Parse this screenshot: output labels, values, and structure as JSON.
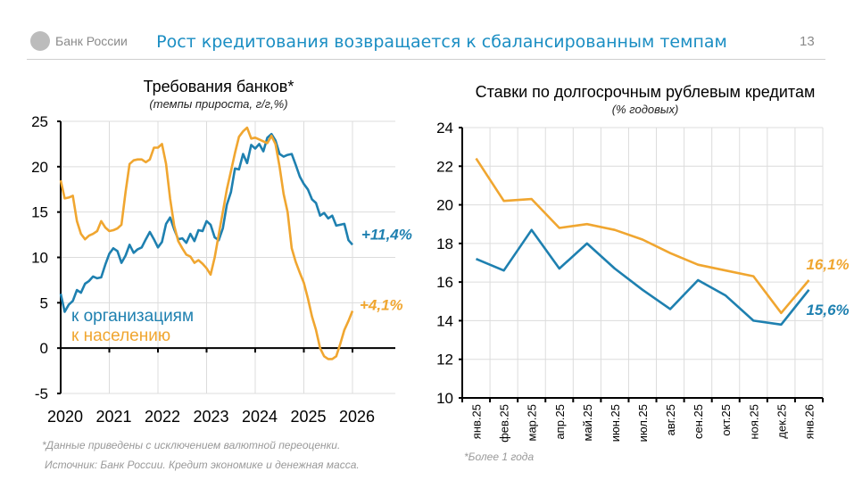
{
  "header": {
    "logo_text": "Банк России",
    "title": "Рост кредитования возвращается к сбалансированным темпам",
    "page_number": "13"
  },
  "colors": {
    "blue": "#1e80b0",
    "orange": "#f0a630",
    "title": "#1b8ec3"
  },
  "footnotes": {
    "left_1": "*Данные приведены с исключением валютной переоценки.",
    "left_2": "Источник: Банк России. Кредит экономике и денежная масса.",
    "right": "*Более 1 года"
  },
  "chart_data": [
    {
      "type": "line",
      "title": "Требования банков*",
      "subtitle": "(темпы прироста, г/г,%)",
      "ylim": [
        -5,
        25
      ],
      "yticks": [
        "-5",
        "0",
        "5",
        "10",
        "15",
        "20",
        "25"
      ],
      "xticks": [
        "2020",
        "2021",
        "2022",
        "2023",
        "2024",
        "2025",
        "2026"
      ],
      "grid": true,
      "legend_placement": "inside-bottom-left",
      "series": [
        {
          "name": "к организациям",
          "color": "#1e80b0",
          "end_label": "+11,4%",
          "points": [
            [
              "2020-01",
              6
            ],
            [
              "2020-02",
              4
            ],
            [
              "2020-03",
              4.8
            ],
            [
              "2020-04",
              5.2
            ],
            [
              "2020-05",
              6.4
            ],
            [
              "2020-06",
              6.1
            ],
            [
              "2020-07",
              7.1
            ],
            [
              "2020-08",
              7.4
            ],
            [
              "2020-09",
              7.9
            ],
            [
              "2020-10",
              7.7
            ],
            [
              "2020-11",
              7.8
            ],
            [
              "2020-12",
              9.2
            ],
            [
              "2021-01",
              10.4
            ],
            [
              "2021-02",
              11
            ],
            [
              "2021-03",
              10.7
            ],
            [
              "2021-04",
              9.4
            ],
            [
              "2021-05",
              10.2
            ],
            [
              "2021-06",
              11.4
            ],
            [
              "2021-07",
              10.5
            ],
            [
              "2021-08",
              10.9
            ],
            [
              "2021-09",
              11.1
            ],
            [
              "2021-10",
              12
            ],
            [
              "2021-11",
              12.8
            ],
            [
              "2021-12",
              12
            ],
            [
              "2022-01",
              11.1
            ],
            [
              "2022-02",
              11.7
            ],
            [
              "2022-03",
              13.7
            ],
            [
              "2022-04",
              14.4
            ],
            [
              "2022-05",
              13.1
            ],
            [
              "2022-06",
              12
            ],
            [
              "2022-07",
              12.1
            ],
            [
              "2022-08",
              11.6
            ],
            [
              "2022-09",
              12.6
            ],
            [
              "2022-10",
              11.8
            ],
            [
              "2022-11",
              13
            ],
            [
              "2022-12",
              12.9
            ],
            [
              "2023-01",
              14
            ],
            [
              "2023-02",
              13.6
            ],
            [
              "2023-03",
              12.2
            ],
            [
              "2023-04",
              11.9
            ],
            [
              "2023-05",
              13.2
            ],
            [
              "2023-06",
              15.8
            ],
            [
              "2023-07",
              17.2
            ],
            [
              "2023-08",
              19.8
            ],
            [
              "2023-09",
              19.7
            ],
            [
              "2023-10",
              21.4
            ],
            [
              "2023-11",
              20.4
            ],
            [
              "2023-12",
              22.4
            ],
            [
              "2024-01",
              22
            ],
            [
              "2024-02",
              22.5
            ],
            [
              "2024-03",
              21.7
            ],
            [
              "2024-04",
              23.2
            ],
            [
              "2024-05",
              23.6
            ],
            [
              "2024-06",
              22.9
            ],
            [
              "2024-07",
              21.4
            ],
            [
              "2024-08",
              21.1
            ],
            [
              "2024-09",
              21.3
            ],
            [
              "2024-10",
              21.4
            ],
            [
              "2024-11",
              20.2
            ],
            [
              "2024-12",
              18.9
            ],
            [
              "2025-01",
              18.1
            ],
            [
              "2025-02",
              17.5
            ],
            [
              "2025-03",
              16.4
            ],
            [
              "2025-04",
              16
            ],
            [
              "2025-05",
              14.6
            ],
            [
              "2025-06",
              14.9
            ],
            [
              "2025-07",
              14.3
            ],
            [
              "2025-08",
              14.6
            ],
            [
              "2025-09",
              13.5
            ],
            [
              "2025-10",
              13.6
            ],
            [
              "2025-11",
              13.7
            ],
            [
              "2025-12",
              11.9
            ],
            [
              "2026-01",
              11.4
            ]
          ]
        },
        {
          "name": "к населению",
          "color": "#f0a630",
          "end_label": "+4,1%",
          "points": [
            [
              "2020-01",
              18.5
            ],
            [
              "2020-02",
              16.5
            ],
            [
              "2020-03",
              16.6
            ],
            [
              "2020-04",
              16.8
            ],
            [
              "2020-05",
              14
            ],
            [
              "2020-06",
              12.6
            ],
            [
              "2020-07",
              12
            ],
            [
              "2020-08",
              12.4
            ],
            [
              "2020-09",
              12.6
            ],
            [
              "2020-10",
              12.9
            ],
            [
              "2020-11",
              14
            ],
            [
              "2020-12",
              13.3
            ],
            [
              "2021-01",
              12.9
            ],
            [
              "2021-02",
              13
            ],
            [
              "2021-03",
              13.2
            ],
            [
              "2021-04",
              13.6
            ],
            [
              "2021-05",
              17.2
            ],
            [
              "2021-06",
              20.3
            ],
            [
              "2021-07",
              20.7
            ],
            [
              "2021-08",
              20.8
            ],
            [
              "2021-09",
              20.8
            ],
            [
              "2021-10",
              20.5
            ],
            [
              "2021-11",
              20.8
            ],
            [
              "2021-12",
              22.1
            ],
            [
              "2022-01",
              22.1
            ],
            [
              "2022-02",
              22.5
            ],
            [
              "2022-03",
              20.3
            ],
            [
              "2022-04",
              16.5
            ],
            [
              "2022-05",
              13.5
            ],
            [
              "2022-06",
              11.8
            ],
            [
              "2022-07",
              11
            ],
            [
              "2022-08",
              10.3
            ],
            [
              "2022-09",
              10.1
            ],
            [
              "2022-10",
              9.4
            ],
            [
              "2022-11",
              9.7
            ],
            [
              "2022-12",
              9.3
            ],
            [
              "2023-01",
              8.8
            ],
            [
              "2023-02",
              8.1
            ],
            [
              "2023-03",
              10
            ],
            [
              "2023-04",
              12.5
            ],
            [
              "2023-05",
              15
            ],
            [
              "2023-06",
              17.5
            ],
            [
              "2023-07",
              19.5
            ],
            [
              "2023-08",
              21.5
            ],
            [
              "2023-09",
              23.3
            ],
            [
              "2023-10",
              23.9
            ],
            [
              "2023-11",
              24.3
            ],
            [
              "2023-12",
              23.1
            ],
            [
              "2024-01",
              23.2
            ],
            [
              "2024-02",
              23
            ],
            [
              "2024-03",
              22.8
            ],
            [
              "2024-04",
              22.6
            ],
            [
              "2024-05",
              23.4
            ],
            [
              "2024-06",
              22.5
            ],
            [
              "2024-07",
              20
            ],
            [
              "2024-08",
              17
            ],
            [
              "2024-09",
              15
            ],
            [
              "2024-10",
              11
            ],
            [
              "2024-11",
              9.5
            ],
            [
              "2024-12",
              8.3
            ],
            [
              "2025-01",
              7.2
            ],
            [
              "2025-02",
              5.5
            ],
            [
              "2025-03",
              3.5
            ],
            [
              "2025-04",
              2
            ],
            [
              "2025-05",
              0
            ],
            [
              "2025-06",
              -0.9
            ],
            [
              "2025-07",
              -1.2
            ],
            [
              "2025-08",
              -1.2
            ],
            [
              "2025-09",
              -0.9
            ],
            [
              "2025-10",
              0.5
            ],
            [
              "2025-11",
              2
            ],
            [
              "2025-12",
              3
            ],
            [
              "2026-01",
              4.1
            ]
          ]
        }
      ]
    },
    {
      "type": "line",
      "title": "Ставки по долгосрочным рублевым кредитам",
      "subtitle": "(% годовых)",
      "ylim": [
        10,
        24
      ],
      "yticks": [
        "10",
        "12",
        "14",
        "16",
        "18",
        "20",
        "22",
        "24"
      ],
      "categories": [
        "янв.25",
        "фев.25",
        "мар.25",
        "апр.25",
        "май.25",
        "июн.25",
        "июл.25",
        "авг.25",
        "сен.25",
        "окт.25",
        "ноя.25",
        "дек.25",
        "янв.26"
      ],
      "grid": true,
      "series": [
        {
          "color": "#f0a630",
          "end_label": "16,1%",
          "values": [
            22.4,
            20.2,
            20.3,
            18.8,
            19.0,
            18.7,
            18.2,
            17.5,
            16.9,
            16.6,
            16.3,
            14.4,
            16.1
          ]
        },
        {
          "color": "#1e80b0",
          "end_label": "15,6%",
          "values": [
            17.2,
            16.6,
            18.7,
            16.7,
            18.0,
            16.7,
            15.6,
            14.6,
            16.1,
            15.3,
            14.0,
            13.8,
            15.6
          ]
        }
      ]
    }
  ]
}
